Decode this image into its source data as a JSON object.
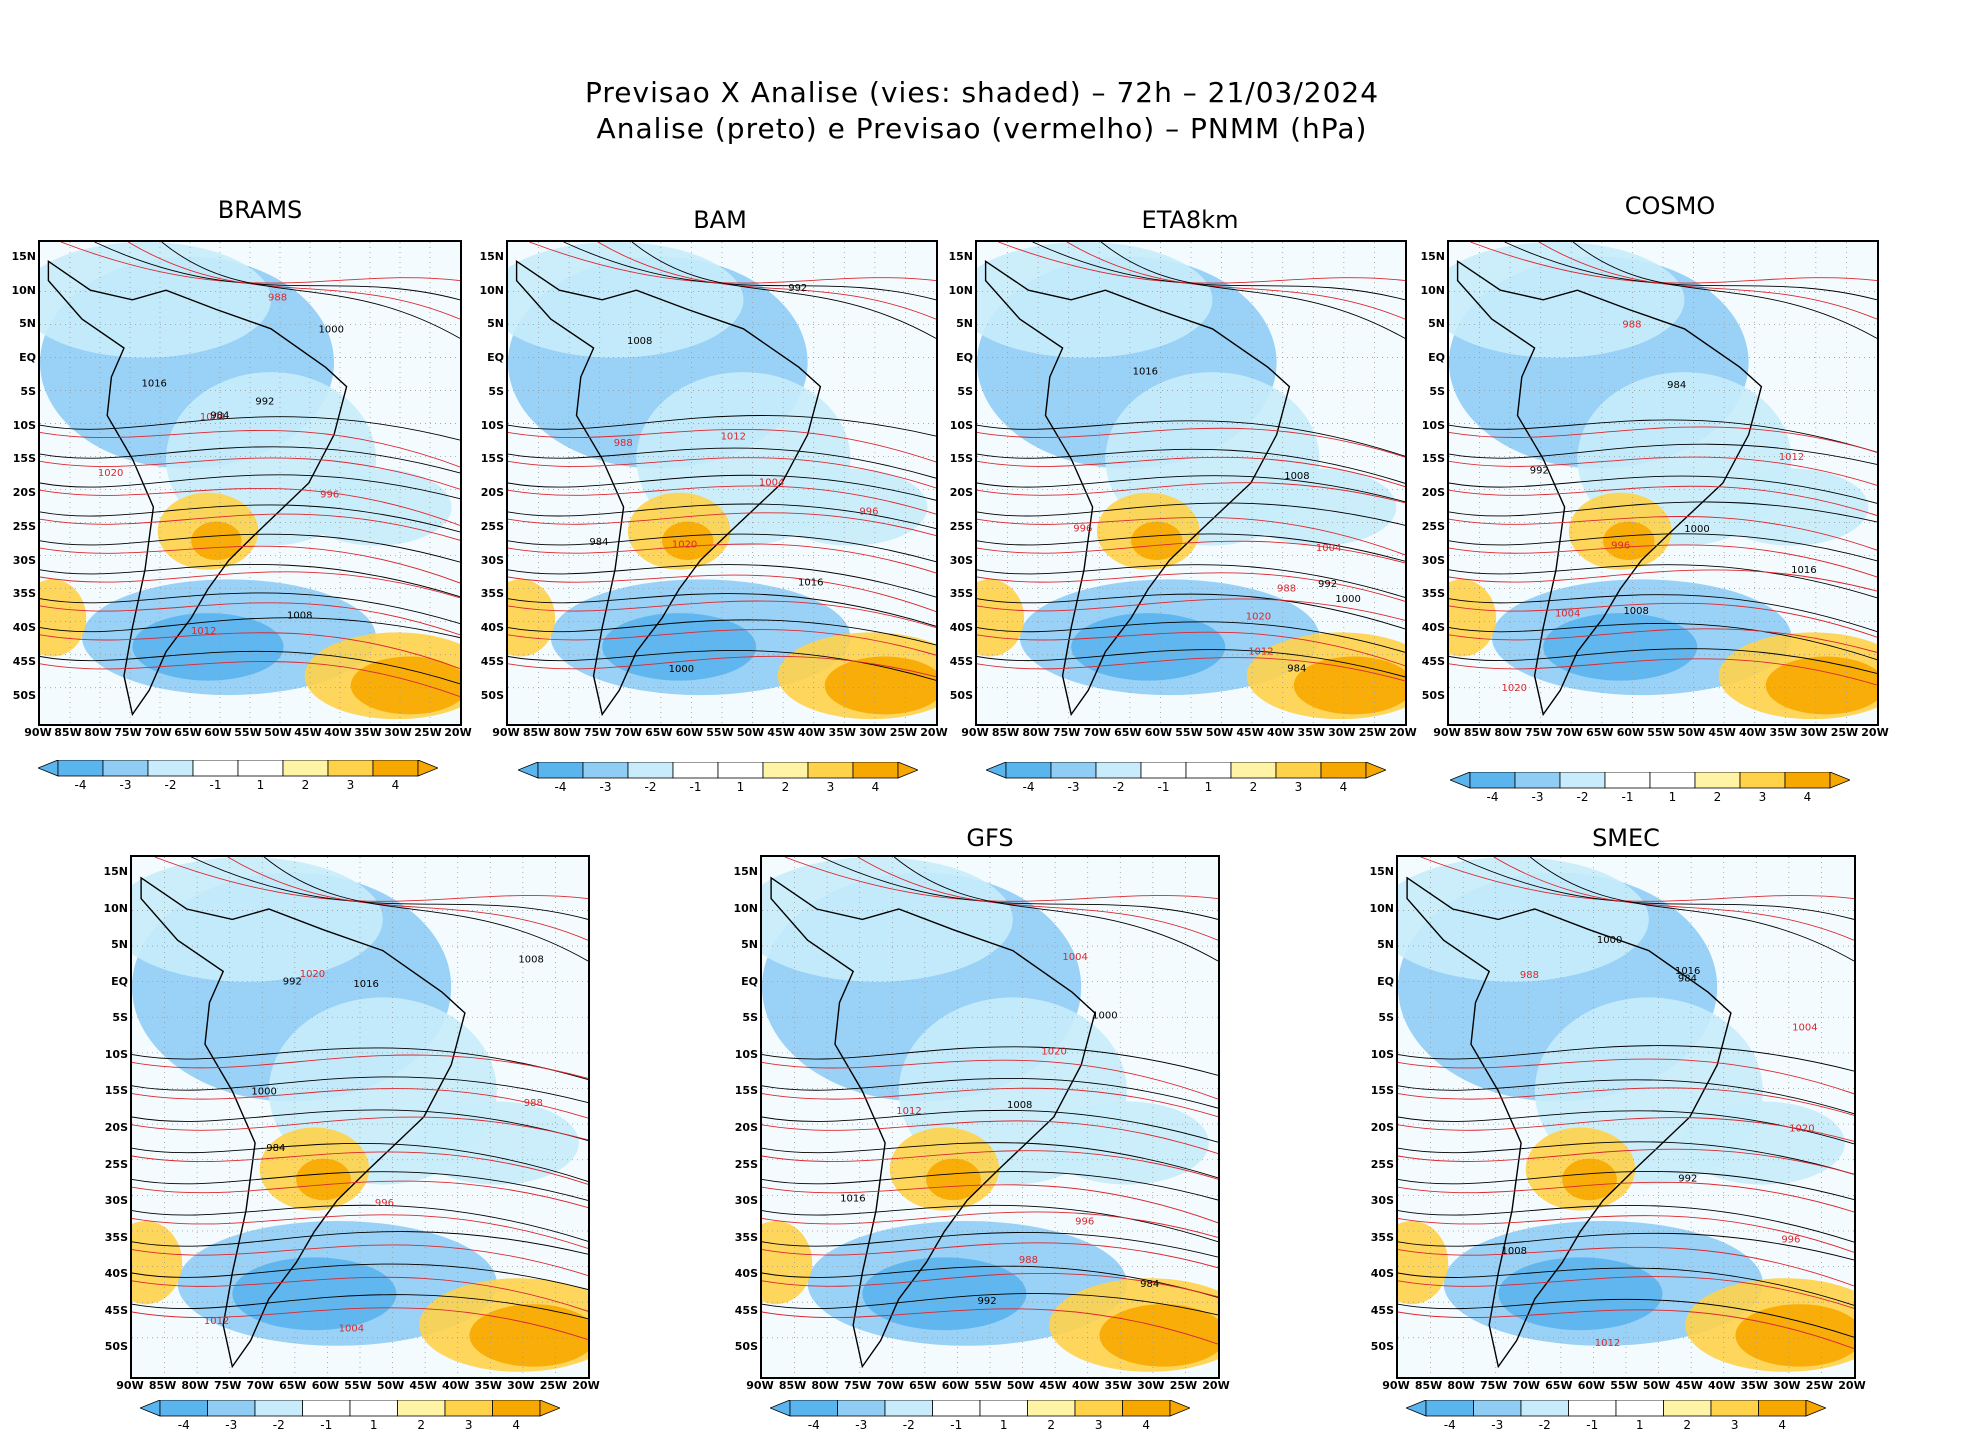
{
  "header": {
    "line1": "Previsao X Analise (vies: shaded) – 72h – 21/03/2024",
    "line2": "Analise (preto) e Previsao (vermelho) – PNMM (hPa)"
  },
  "colors": {
    "strong_negative": "#5ab4ee",
    "negative": "#8fcdf5",
    "weak_negative": "#c8ecfb",
    "near_zero": "#ffffff",
    "weak_positive": "#fff3a6",
    "positive": "#ffd24a",
    "strong_positive": "#f7a800",
    "analysis_contour": "#000000",
    "forecast_contour": "#d9282e"
  },
  "axes": {
    "lat_labels": [
      "15N",
      "10N",
      "5N",
      "EQ",
      "5S",
      "10S",
      "15S",
      "20S",
      "25S",
      "30S",
      "35S",
      "40S",
      "45S",
      "50S"
    ],
    "lon_labels": [
      "90W",
      "85W",
      "80W",
      "75W",
      "70W",
      "65W",
      "60W",
      "55W",
      "50W",
      "45W",
      "40W",
      "35W",
      "30W",
      "25W",
      "20W"
    ]
  },
  "colorbar_labels": [
    "-4",
    "-3",
    "-2",
    "-1",
    "1",
    "2",
    "3",
    "4"
  ],
  "panels": [
    {
      "name": "BRAMS"
    },
    {
      "name": "BAM"
    },
    {
      "name": "ETA8km"
    },
    {
      "name": "COSMO"
    },
    {
      "name": ""
    },
    {
      "name": "GFS"
    },
    {
      "name": "SMEC"
    }
  ],
  "isobar_labels": [
    "1016",
    "1012",
    "1008",
    "1004",
    "1000",
    "996",
    "992",
    "988",
    "984",
    "1020"
  ]
}
